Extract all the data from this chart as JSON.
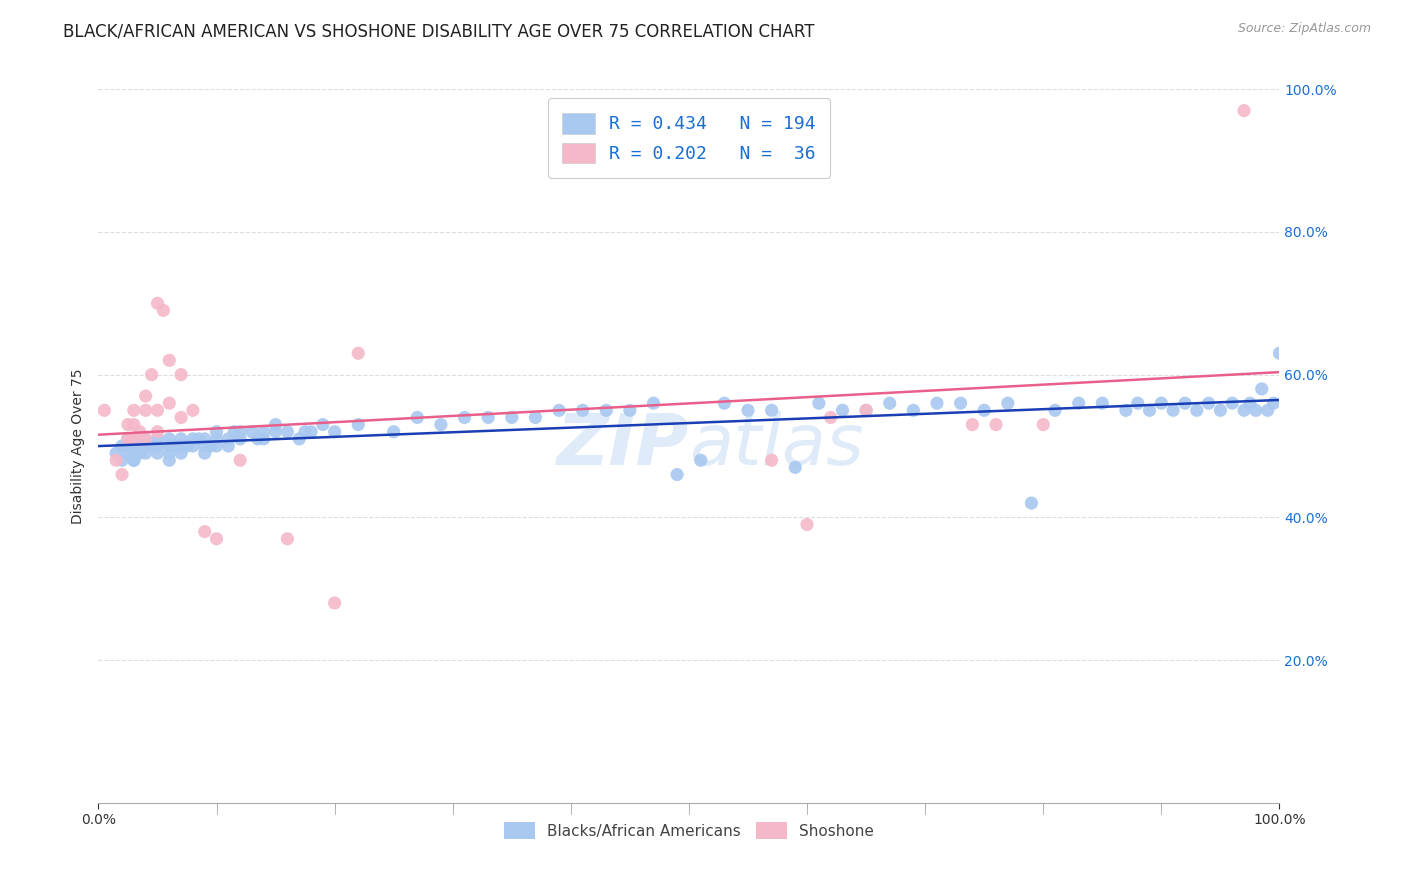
{
  "title": "BLACK/AFRICAN AMERICAN VS SHOSHONE DISABILITY AGE OVER 75 CORRELATION CHART",
  "source": "Source: ZipAtlas.com",
  "ylabel": "Disability Age Over 75",
  "watermark": "ZIPatlas",
  "blue_R": 0.434,
  "blue_N": 194,
  "pink_R": 0.202,
  "pink_N": 36,
  "blue_line_color": "#1a3fb5",
  "pink_line_color": "#e8608a",
  "blue_scatter_color": "#a8c8f0",
  "pink_scatter_color": "#f5b8c8",
  "legend_color": "#1a6fd4",
  "xlim": [
    0,
    1
  ],
  "ylim": [
    0,
    1
  ],
  "x_ticks_minor": [
    0.1,
    0.2,
    0.3,
    0.4,
    0.5,
    0.6,
    0.7,
    0.8,
    0.9
  ],
  "y_ticks": [
    0.2,
    0.4,
    0.6,
    0.8,
    1.0
  ],
  "y_tick_labels": [
    "",
    "40.0%",
    "60.0%",
    "80.0%",
    "100.0%"
  ],
  "blue_points_x": [
    0.015,
    0.02,
    0.02,
    0.025,
    0.025,
    0.025,
    0.03,
    0.03,
    0.03,
    0.03,
    0.03,
    0.03,
    0.03,
    0.035,
    0.035,
    0.04,
    0.04,
    0.04,
    0.04,
    0.045,
    0.05,
    0.05,
    0.05,
    0.05,
    0.06,
    0.06,
    0.06,
    0.06,
    0.06,
    0.065,
    0.07,
    0.07,
    0.07,
    0.07,
    0.075,
    0.08,
    0.08,
    0.085,
    0.09,
    0.09,
    0.09,
    0.095,
    0.1,
    0.1,
    0.1,
    0.11,
    0.11,
    0.115,
    0.12,
    0.12,
    0.13,
    0.135,
    0.14,
    0.14,
    0.15,
    0.15,
    0.16,
    0.17,
    0.175,
    0.18,
    0.19,
    0.2,
    0.22,
    0.25,
    0.27,
    0.29,
    0.31,
    0.33,
    0.35,
    0.37,
    0.39,
    0.41,
    0.43,
    0.45,
    0.47,
    0.49,
    0.51,
    0.53,
    0.55,
    0.57,
    0.59,
    0.61,
    0.63,
    0.65,
    0.67,
    0.69,
    0.71,
    0.73,
    0.75,
    0.77,
    0.79,
    0.81,
    0.83,
    0.85,
    0.87,
    0.88,
    0.89,
    0.9,
    0.91,
    0.92,
    0.93,
    0.94,
    0.95,
    0.96,
    0.97,
    0.975,
    0.98,
    0.985,
    0.99,
    0.995,
    1.0
  ],
  "blue_points_y": [
    0.49,
    0.5,
    0.48,
    0.49,
    0.5,
    0.51,
    0.48,
    0.49,
    0.5,
    0.5,
    0.51,
    0.49,
    0.48,
    0.5,
    0.49,
    0.49,
    0.5,
    0.51,
    0.5,
    0.5,
    0.49,
    0.5,
    0.51,
    0.5,
    0.48,
    0.49,
    0.5,
    0.51,
    0.5,
    0.5,
    0.5,
    0.49,
    0.51,
    0.5,
    0.5,
    0.51,
    0.5,
    0.51,
    0.49,
    0.5,
    0.51,
    0.5,
    0.51,
    0.52,
    0.5,
    0.51,
    0.5,
    0.52,
    0.51,
    0.52,
    0.52,
    0.51,
    0.52,
    0.51,
    0.52,
    0.53,
    0.52,
    0.51,
    0.52,
    0.52,
    0.53,
    0.52,
    0.53,
    0.52,
    0.54,
    0.53,
    0.54,
    0.54,
    0.54,
    0.54,
    0.55,
    0.55,
    0.55,
    0.55,
    0.56,
    0.46,
    0.48,
    0.56,
    0.55,
    0.55,
    0.47,
    0.56,
    0.55,
    0.55,
    0.56,
    0.55,
    0.56,
    0.56,
    0.55,
    0.56,
    0.42,
    0.55,
    0.56,
    0.56,
    0.55,
    0.56,
    0.55,
    0.56,
    0.55,
    0.56,
    0.55,
    0.56,
    0.55,
    0.56,
    0.55,
    0.56,
    0.55,
    0.58,
    0.55,
    0.56,
    0.63
  ],
  "pink_points_x": [
    0.005,
    0.015,
    0.02,
    0.025,
    0.025,
    0.03,
    0.03,
    0.03,
    0.035,
    0.04,
    0.04,
    0.04,
    0.045,
    0.05,
    0.05,
    0.05,
    0.055,
    0.06,
    0.06,
    0.07,
    0.07,
    0.08,
    0.09,
    0.1,
    0.12,
    0.16,
    0.2,
    0.22,
    0.57,
    0.6,
    0.62,
    0.65,
    0.74,
    0.76,
    0.8,
    0.97
  ],
  "pink_points_y": [
    0.55,
    0.48,
    0.46,
    0.53,
    0.51,
    0.55,
    0.53,
    0.51,
    0.52,
    0.55,
    0.57,
    0.51,
    0.6,
    0.55,
    0.52,
    0.7,
    0.69,
    0.62,
    0.56,
    0.6,
    0.54,
    0.55,
    0.38,
    0.37,
    0.48,
    0.37,
    0.28,
    0.63,
    0.48,
    0.39,
    0.54,
    0.55,
    0.53,
    0.53,
    0.53,
    0.97
  ],
  "background_color": "#ffffff",
  "grid_color": "#dddddd",
  "title_fontsize": 12,
  "axis_label_fontsize": 10,
  "tick_fontsize": 10,
  "source_fontsize": 9
}
